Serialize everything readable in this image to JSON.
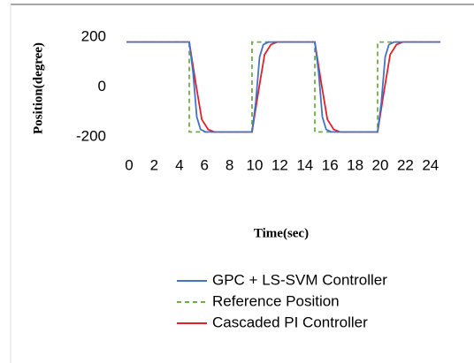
{
  "chart_data": {
    "type": "line",
    "x_label": "Time(sec)",
    "y_label": "Position(degree)",
    "xlim": [
      0,
      25
    ],
    "xticks": [
      0,
      2,
      4,
      6,
      8,
      10,
      12,
      14,
      16,
      18,
      20,
      22,
      24
    ],
    "ylim": [
      -200,
      200
    ],
    "yticks": [
      200,
      0,
      -200
    ],
    "series": [
      {
        "name": "GPC + LS-SVM Controller",
        "color": "#4472c4",
        "dash": "solid",
        "x": [
          0,
          5,
          5.3,
          5.6,
          5.9,
          6.3,
          10,
          10.3,
          10.6,
          10.9,
          11.3,
          15,
          15.3,
          15.6,
          15.9,
          16.3,
          20,
          20.3,
          20.6,
          20.9,
          21.3,
          25
        ],
        "values": [
          180,
          180,
          60,
          -120,
          -170,
          -180,
          -180,
          -60,
          120,
          170,
          180,
          180,
          60,
          -120,
          -170,
          -180,
          -180,
          -60,
          120,
          170,
          180,
          180
        ]
      },
      {
        "name": "Reference Position",
        "color": "#70ad47",
        "dash": "dashed",
        "x": [
          0,
          5,
          5,
          10,
          10,
          15,
          15,
          20,
          20,
          25
        ],
        "values": [
          180,
          180,
          -180,
          -180,
          180,
          180,
          -180,
          -180,
          180,
          180
        ]
      },
      {
        "name": "Cascaded PI Controller",
        "color": "#e0202a",
        "dash": "solid",
        "x": [
          0,
          5,
          5.5,
          6,
          6.5,
          7,
          10,
          10.5,
          11,
          11.5,
          12,
          15,
          15.5,
          16,
          16.5,
          17,
          20,
          20.5,
          21,
          21.5,
          22,
          25
        ],
        "values": [
          180,
          180,
          20,
          -130,
          -170,
          -180,
          -180,
          -20,
          130,
          170,
          180,
          180,
          20,
          -130,
          -170,
          -180,
          -180,
          -20,
          130,
          170,
          180,
          180
        ]
      }
    ]
  }
}
